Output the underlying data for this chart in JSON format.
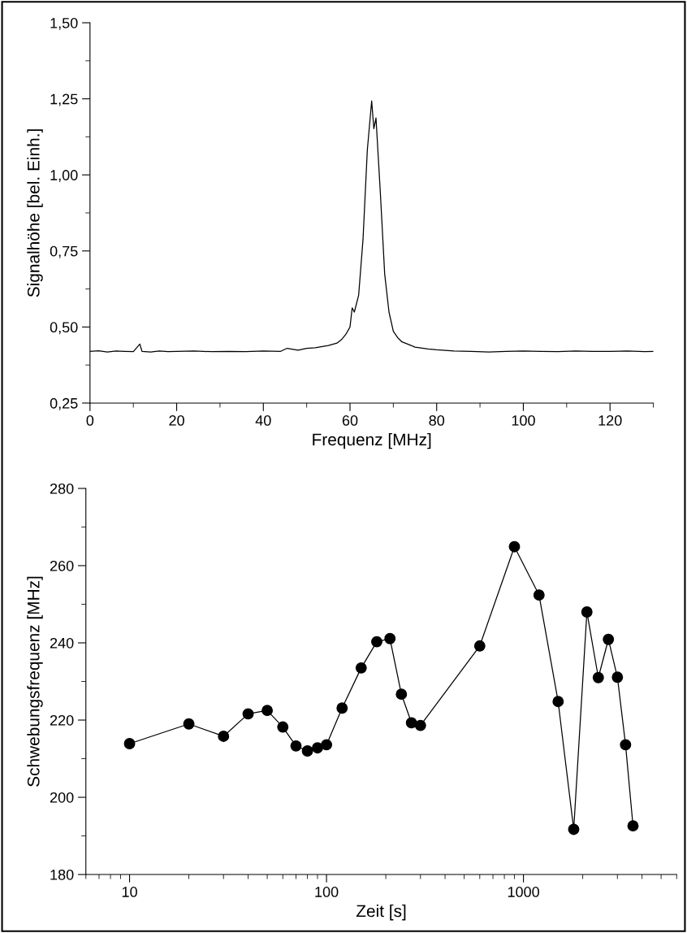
{
  "chart_data": [
    {
      "type": "line",
      "xlabel": "Frequenz [MHz]",
      "ylabel": "Signalhöhe [bel. Einh.]",
      "color": "#000000",
      "marker": "none",
      "line_style": "solid",
      "grid": false,
      "legend": false,
      "x": [
        0,
        2,
        4,
        6,
        8,
        10,
        11.5,
        12,
        14,
        16,
        18,
        20,
        24,
        28,
        32,
        36,
        40,
        44,
        45.5,
        48,
        50,
        52,
        55,
        57,
        58,
        59,
        60,
        60.5,
        61,
        62,
        63,
        64,
        65,
        65.5,
        66,
        67,
        68,
        69,
        70,
        71,
        72,
        74,
        75,
        78,
        80,
        84,
        88,
        92,
        96,
        100,
        104,
        108,
        112,
        116,
        120,
        124,
        128,
        130
      ],
      "values": [
        0.42,
        0.422,
        0.418,
        0.421,
        0.42,
        0.419,
        0.444,
        0.42,
        0.418,
        0.421,
        0.419,
        0.42,
        0.421,
        0.419,
        0.42,
        0.419,
        0.421,
        0.42,
        0.43,
        0.424,
        0.43,
        0.432,
        0.439,
        0.447,
        0.458,
        0.475,
        0.5,
        0.563,
        0.549,
        0.605,
        0.787,
        1.082,
        1.243,
        1.152,
        1.187,
        0.942,
        0.675,
        0.549,
        0.486,
        0.465,
        0.451,
        0.44,
        0.434,
        0.428,
        0.425,
        0.421,
        0.42,
        0.418,
        0.42,
        0.421,
        0.42,
        0.419,
        0.421,
        0.42,
        0.42,
        0.421,
        0.419,
        0.42
      ],
      "xlim": [
        0,
        130
      ],
      "xticks": [
        0,
        20,
        40,
        60,
        80,
        100,
        120,
        {
          "value": 10,
          "label": null
        },
        {
          "value": 30,
          "label": null
        },
        {
          "value": 50,
          "label": null
        },
        {
          "value": 70,
          "label": null
        },
        {
          "value": 90,
          "label": null
        },
        {
          "value": 110,
          "label": null
        },
        {
          "value": 130,
          "label": null
        }
      ],
      "ylim": [
        0.25,
        1.5
      ],
      "yticks": [
        {
          "value": 0.25,
          "label": "0,25"
        },
        {
          "value": 0.5,
          "label": "0,50"
        },
        {
          "value": 0.75,
          "label": "0,75"
        },
        {
          "value": 1.0,
          "label": "1,00"
        },
        {
          "value": 1.25,
          "label": "1,25"
        },
        {
          "value": 1.5,
          "label": "1,50"
        },
        {
          "value": 0.375,
          "label": null
        },
        {
          "value": 0.625,
          "label": null
        },
        {
          "value": 0.875,
          "label": null
        },
        {
          "value": 1.125,
          "label": null
        },
        {
          "value": 1.375,
          "label": null
        }
      ]
    },
    {
      "type": "line",
      "xlabel": "Zeit [s]",
      "ylabel": "Schwebungsfrequenz [MHz]",
      "color": "#000000",
      "marker": "circle",
      "line_style": "solid",
      "grid": false,
      "legend": false,
      "log": "x",
      "x": [
        10,
        20,
        30,
        40,
        50,
        60,
        70,
        80,
        90,
        100,
        120,
        150,
        180,
        210,
        240,
        270,
        300,
        600,
        900,
        1200,
        1500,
        1800,
        2100,
        2400,
        2700,
        3000,
        3300,
        3600
      ],
      "values": [
        213.9,
        219.0,
        215.8,
        221.6,
        222.5,
        218.2,
        213.3,
        212.0,
        212.8,
        213.6,
        223.1,
        233.5,
        240.3,
        241.1,
        226.7,
        219.3,
        218.6,
        239.2,
        264.9,
        252.4,
        224.8,
        191.7,
        248.0,
        231.0,
        240.9,
        231.1,
        213.6,
        192.6
      ],
      "xlim": [
        6,
        6000
      ],
      "xticks": [
        10,
        100,
        1000,
        {
          "value": 6,
          "label": null
        },
        {
          "value": 7,
          "label": null
        },
        {
          "value": 8,
          "label": null
        },
        {
          "value": 9,
          "label": null
        },
        {
          "value": 20,
          "label": null
        },
        {
          "value": 30,
          "label": null
        },
        {
          "value": 40,
          "label": null
        },
        {
          "value": 50,
          "label": null
        },
        {
          "value": 60,
          "label": null
        },
        {
          "value": 70,
          "label": null
        },
        {
          "value": 80,
          "label": null
        },
        {
          "value": 90,
          "label": null
        },
        {
          "value": 200,
          "label": null
        },
        {
          "value": 300,
          "label": null
        },
        {
          "value": 400,
          "label": null
        },
        {
          "value": 500,
          "label": null
        },
        {
          "value": 600,
          "label": null
        },
        {
          "value": 700,
          "label": null
        },
        {
          "value": 800,
          "label": null
        },
        {
          "value": 900,
          "label": null
        },
        {
          "value": 2000,
          "label": null
        },
        {
          "value": 3000,
          "label": null
        },
        {
          "value": 4000,
          "label": null
        },
        {
          "value": 5000,
          "label": null
        },
        {
          "value": 6000,
          "label": null
        }
      ],
      "ylim": [
        180,
        280
      ],
      "yticks": [
        180,
        200,
        220,
        240,
        260,
        280,
        {
          "value": 190,
          "label": null
        },
        {
          "value": 210,
          "label": null
        },
        {
          "value": 230,
          "label": null
        },
        {
          "value": 250,
          "label": null
        },
        {
          "value": 270,
          "label": null
        }
      ]
    }
  ]
}
